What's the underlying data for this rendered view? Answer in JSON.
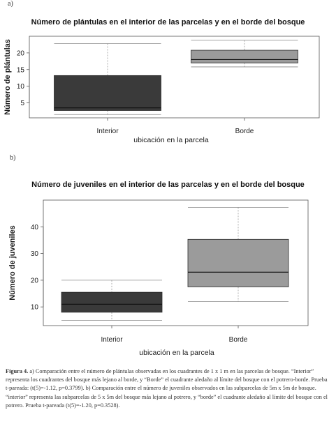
{
  "figure": {
    "caption_label": "Figura 4.",
    "caption_text": "a) Comparación entre el número de plántulas observadas en los cuadrantes de 1 x 1 m en las parcelas de bosque. “Interior” representa los cuadrantes del bosque más lejano al borde, y “Borde” el cuadrante aledaño al límite del bosque con el potrero-borde. Prueba t-pareada: (t(5)=-1.12, p=0.3799). b) Comparación entre el número de juveniles observados en las subparcelas de 5m x 5m de bosque. “interior” representa las subparcelas de 5 x 5m del bosque más lejano al potrero, y “borde” el cuadrante aledaño al límite del bosque con el potrero. Prueba t-pareada (t(5)=-1.20, p=0.3528)."
  },
  "chart_data": [
    {
      "panel": "a)",
      "type": "box",
      "title": "Número de plántulas en el interior de las parcelas y en el borde del bosque",
      "xlabel": "ubicación en la parcela",
      "ylabel": "Número de plántulas",
      "categories": [
        "Interior",
        "Borde"
      ],
      "yticks": [
        5,
        10,
        15,
        20
      ],
      "ylim": [
        0.5,
        25
      ],
      "grid": false,
      "boxes": [
        {
          "category": "Interior",
          "min": 1.5,
          "q1": 2.7,
          "median": 3.5,
          "q3": 13.2,
          "max": 22.8,
          "color": "#3a3a3a"
        },
        {
          "category": "Borde",
          "min": 15.8,
          "q1": 17,
          "median": 18,
          "q3": 20.8,
          "max": 23.8,
          "color": "#9b9b9b"
        }
      ]
    },
    {
      "panel": "b)",
      "type": "box",
      "title": "Número de juveniles en el interior de las parcelas y en el borde del bosque",
      "xlabel": "ubicación en la parcela",
      "ylabel": "Número de juveniles",
      "categories": [
        "Interior",
        "Borde"
      ],
      "yticks": [
        10,
        20,
        30,
        40
      ],
      "ylim": [
        3,
        50
      ],
      "grid": false,
      "boxes": [
        {
          "category": "Interior",
          "min": 5,
          "q1": 8,
          "median": 11,
          "q3": 15.5,
          "max": 20,
          "color": "#3a3a3a"
        },
        {
          "category": "Borde",
          "min": 12,
          "q1": 17.5,
          "median": 23,
          "q3": 35.3,
          "max": 47.3,
          "color": "#9b9b9b"
        }
      ]
    }
  ]
}
